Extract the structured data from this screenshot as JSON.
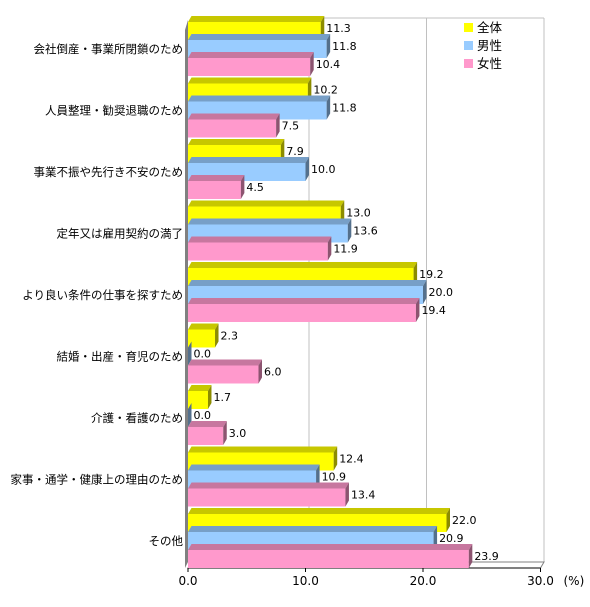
{
  "chart_data": {
    "type": "bar",
    "orientation": "horizontal",
    "style": "3d",
    "categories": [
      "会社倒産・事業所閉鎖のため",
      "人員整理・勧奨退職のため",
      "事業不振や先行き不安のため",
      "定年又は雇用契約の満了",
      "より良い条件の仕事を探すため",
      "結婚・出産・育児のため",
      "介護・看護のため",
      "家事・通学・健康上の理由のため",
      "その他"
    ],
    "series": [
      {
        "name": "全体",
        "color": "#ffff00",
        "values": [
          11.3,
          10.2,
          7.9,
          13.0,
          19.2,
          2.3,
          1.7,
          12.4,
          22.0
        ],
        "labels": [
          "11.3",
          "10.2",
          "7.9",
          "13.0",
          "19.2",
          "2.3",
          "1.7",
          "12.4",
          "22.0"
        ]
      },
      {
        "name": "男性",
        "color": "#99ccff",
        "values": [
          11.8,
          11.8,
          10.0,
          13.6,
          20.0,
          0.0,
          0.0,
          10.9,
          20.9
        ],
        "labels": [
          "11.8",
          "11.8",
          "10.0",
          "13.6",
          "20.0",
          "0.0",
          "0.0",
          "10.9",
          "20.9"
        ]
      },
      {
        "name": "女性",
        "color": "#ff99cc",
        "values": [
          10.4,
          7.5,
          4.5,
          11.9,
          19.4,
          6.0,
          3.0,
          13.4,
          23.9
        ],
        "labels": [
          "10.4",
          "7.5",
          "4.5",
          "11.9",
          "19.4",
          "6.0",
          "3.0",
          "13.4",
          "23.9"
        ]
      }
    ],
    "xlim": [
      0,
      30
    ],
    "xticks": [
      "0.0",
      "10.0",
      "20.0",
      "30.0"
    ],
    "xunit": "(%)",
    "grid": true,
    "legend_position": "top-right"
  }
}
